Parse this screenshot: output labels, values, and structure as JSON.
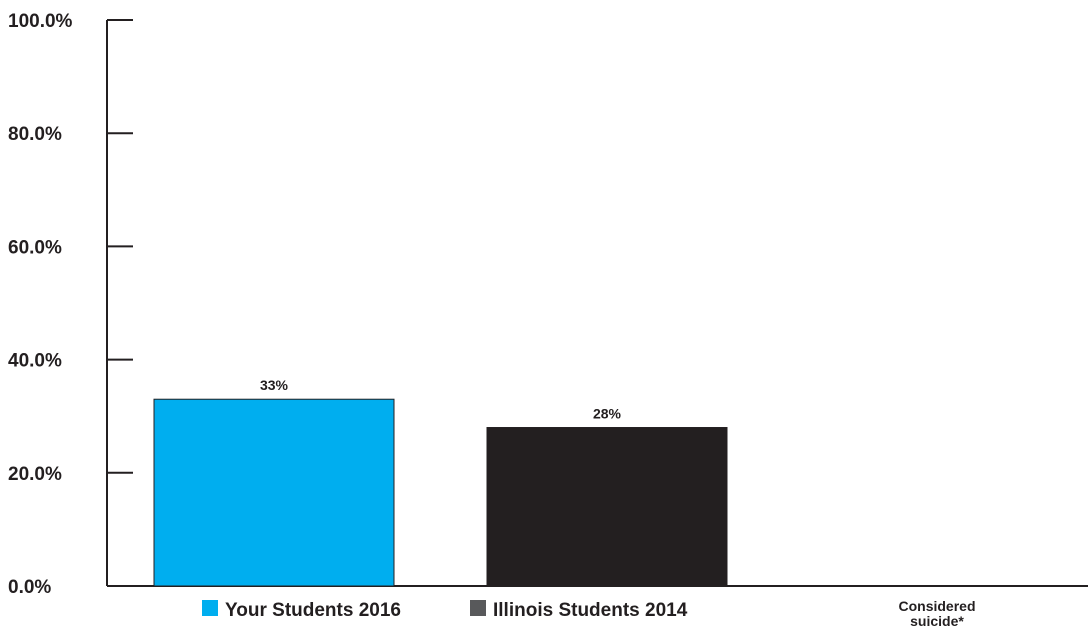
{
  "chart_data": {
    "type": "bar",
    "categories": [
      "Considered suicide*"
    ],
    "category_lines": [
      "Considered",
      "suicide*"
    ],
    "series": [
      {
        "name": "Your Students 2016",
        "values": [
          33
        ],
        "label": "33%",
        "color": "#00aeef"
      },
      {
        "name": "Illinois Students 2014",
        "values": [
          28
        ],
        "label": "28%",
        "color": "#231f20"
      }
    ],
    "ylim": [
      0,
      100
    ],
    "yticks": [
      0,
      20,
      40,
      60,
      80,
      100
    ],
    "ytick_labels": [
      "0.0%",
      "20.0%",
      "40.0%",
      "60.0%",
      "80.0%",
      "100.0%"
    ],
    "xlabel": "",
    "ylabel": "",
    "grid": false,
    "legend_position": "bottom"
  }
}
